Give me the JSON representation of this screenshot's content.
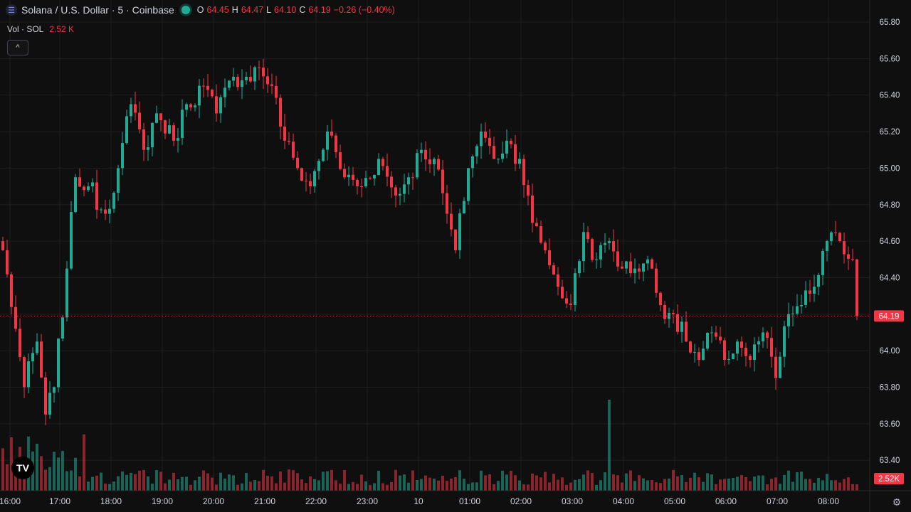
{
  "legend": {
    "title": "Solana / U.S. Dollar · 5 · Coinbase",
    "o_label": "O",
    "o": "64.45",
    "h_label": "H",
    "h": "64.47",
    "l_label": "L",
    "l": "64.10",
    "c_label": "C",
    "c": "64.19",
    "change": "−0.26 (−0.40%)"
  },
  "volume_legend": {
    "label": "Vol · SOL",
    "value": "2.52 K"
  },
  "controls": {
    "collapse": "^",
    "logo": "TV",
    "settings": "⚙"
  },
  "colors": {
    "up": "#22ab94",
    "down": "#f23645",
    "background": "#0f0f0f",
    "grid": "#1f1f1f"
  },
  "chart_data": {
    "type": "candlestick",
    "ylim": [
      63.3,
      65.85
    ],
    "y_ticks": [
      "65.80",
      "65.60",
      "65.40",
      "65.20",
      "65.00",
      "64.80",
      "64.60",
      "64.40",
      "64.20",
      "64.00",
      "63.80",
      "63.60",
      "63.40"
    ],
    "x_ticks": [
      "16:00",
      "17:00",
      "18:00",
      "19:00",
      "20:00",
      "21:00",
      "22:00",
      "23:00",
      "10",
      "01:00",
      "02:00",
      "03:00",
      "04:00",
      "05:00",
      "06:00",
      "07:00",
      "08:00"
    ],
    "last_price": "64.19",
    "last_volume": "2.52K",
    "close_path": [
      {
        "i": 0,
        "c": 64.55
      },
      {
        "i": 3,
        "c": 64.12
      },
      {
        "i": 5,
        "c": 63.8
      },
      {
        "i": 8,
        "c": 64.05
      },
      {
        "i": 10,
        "c": 63.65
      },
      {
        "i": 12,
        "c": 63.8
      },
      {
        "i": 15,
        "c": 64.45
      },
      {
        "i": 17,
        "c": 64.95
      },
      {
        "i": 20,
        "c": 64.9
      },
      {
        "i": 24,
        "c": 64.75
      },
      {
        "i": 27,
        "c": 65.0
      },
      {
        "i": 30,
        "c": 65.35
      },
      {
        "i": 33,
        "c": 65.1
      },
      {
        "i": 36,
        "c": 65.3
      },
      {
        "i": 40,
        "c": 65.15
      },
      {
        "i": 43,
        "c": 65.35
      },
      {
        "i": 47,
        "c": 65.45
      },
      {
        "i": 50,
        "c": 65.3
      },
      {
        "i": 54,
        "c": 65.5
      },
      {
        "i": 57,
        "c": 65.5
      },
      {
        "i": 60,
        "c": 65.55
      },
      {
        "i": 63,
        "c": 65.45
      },
      {
        "i": 66,
        "c": 65.15
      },
      {
        "i": 69,
        "c": 65.0
      },
      {
        "i": 72,
        "c": 64.9
      },
      {
        "i": 76,
        "c": 65.2
      },
      {
        "i": 80,
        "c": 64.95
      },
      {
        "i": 84,
        "c": 64.9
      },
      {
        "i": 88,
        "c": 65.05
      },
      {
        "i": 92,
        "c": 64.85
      },
      {
        "i": 95,
        "c": 64.95
      },
      {
        "i": 98,
        "c": 65.1
      },
      {
        "i": 101,
        "c": 65.05
      },
      {
        "i": 104,
        "c": 64.75
      },
      {
        "i": 106,
        "c": 64.55
      },
      {
        "i": 109,
        "c": 65.0
      },
      {
        "i": 112,
        "c": 65.2
      },
      {
        "i": 115,
        "c": 65.05
      },
      {
        "i": 118,
        "c": 65.15
      },
      {
        "i": 121,
        "c": 65.05
      },
      {
        "i": 124,
        "c": 64.7
      },
      {
        "i": 127,
        "c": 64.55
      },
      {
        "i": 130,
        "c": 64.35
      },
      {
        "i": 133,
        "c": 64.25
      },
      {
        "i": 136,
        "c": 64.65
      },
      {
        "i": 139,
        "c": 64.5
      },
      {
        "i": 142,
        "c": 64.6
      },
      {
        "i": 145,
        "c": 64.45
      },
      {
        "i": 148,
        "c": 64.45
      },
      {
        "i": 151,
        "c": 64.5
      },
      {
        "i": 154,
        "c": 64.25
      },
      {
        "i": 157,
        "c": 64.2
      },
      {
        "i": 160,
        "c": 64.05
      },
      {
        "i": 163,
        "c": 63.95
      },
      {
        "i": 166,
        "c": 64.1
      },
      {
        "i": 169,
        "c": 63.95
      },
      {
        "i": 172,
        "c": 64.05
      },
      {
        "i": 175,
        "c": 63.95
      },
      {
        "i": 178,
        "c": 64.1
      },
      {
        "i": 181,
        "c": 63.85
      },
      {
        "i": 184,
        "c": 64.2
      },
      {
        "i": 187,
        "c": 64.25
      },
      {
        "i": 190,
        "c": 64.35
      },
      {
        "i": 193,
        "c": 64.6
      },
      {
        "i": 196,
        "c": 64.6
      },
      {
        "i": 199,
        "c": 64.5
      },
      {
        "i": 200,
        "c": 64.19
      }
    ],
    "volume_spike": {
      "i": 142,
      "label": "spike"
    }
  }
}
